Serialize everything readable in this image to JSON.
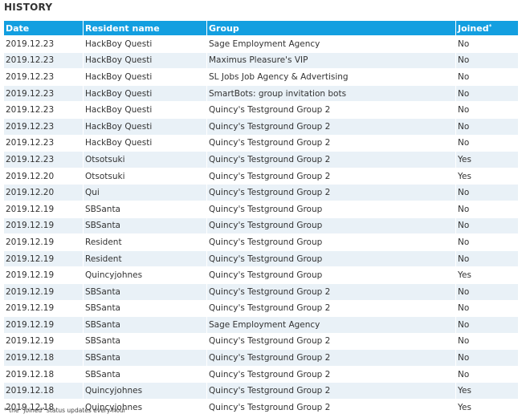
{
  "section": {
    "title": "HISTORY"
  },
  "table": {
    "headers": {
      "date": "Date",
      "resident": "Resident name",
      "group": "Group",
      "joined": "Joined",
      "joined_mark": "*"
    },
    "rows": [
      {
        "date": "2019.12.23",
        "resident": "HackBoy Questi",
        "group": "Sage Employment Agency",
        "joined": "No"
      },
      {
        "date": "2019.12.23",
        "resident": "HackBoy Questi",
        "group": "Maximus Pleasure's VIP",
        "joined": "No"
      },
      {
        "date": "2019.12.23",
        "resident": "HackBoy Questi",
        "group": "SL Jobs Job Agency & Advertising",
        "joined": "No"
      },
      {
        "date": "2019.12.23",
        "resident": "HackBoy Questi",
        "group": "SmartBots: group invitation bots",
        "joined": "No"
      },
      {
        "date": "2019.12.23",
        "resident": "HackBoy Questi",
        "group": "Quincy's Testground Group 2",
        "joined": "No"
      },
      {
        "date": "2019.12.23",
        "resident": "HackBoy Questi",
        "group": "Quincy's Testground Group 2",
        "joined": "No"
      },
      {
        "date": "2019.12.23",
        "resident": "HackBoy Questi",
        "group": "Quincy's Testground Group 2",
        "joined": "No"
      },
      {
        "date": "2019.12.23",
        "resident": "Otsotsuki",
        "group": "Quincy's Testground Group 2",
        "joined": "Yes"
      },
      {
        "date": "2019.12.20",
        "resident": "Otsotsuki",
        "group": "Quincy's Testground Group 2",
        "joined": "Yes"
      },
      {
        "date": "2019.12.20",
        "resident": "Qui",
        "group": "Quincy's Testground Group 2",
        "joined": "No"
      },
      {
        "date": "2019.12.19",
        "resident": "SBSanta",
        "group": "Quincy's Testground Group",
        "joined": "No"
      },
      {
        "date": "2019.12.19",
        "resident": "SBSanta",
        "group": "Quincy's Testground Group",
        "joined": "No"
      },
      {
        "date": "2019.12.19",
        "resident": "Resident",
        "group": "Quincy's Testground Group",
        "joined": "No"
      },
      {
        "date": "2019.12.19",
        "resident": "Resident",
        "group": "Quincy's Testground Group",
        "joined": "No"
      },
      {
        "date": "2019.12.19",
        "resident": "Quincyjohnes",
        "group": "Quincy's Testground Group",
        "joined": "Yes"
      },
      {
        "date": "2019.12.19",
        "resident": "SBSanta",
        "group": "Quincy's Testground Group 2",
        "joined": "No"
      },
      {
        "date": "2019.12.19",
        "resident": "SBSanta",
        "group": "Quincy's Testground Group 2",
        "joined": "No"
      },
      {
        "date": "2019.12.19",
        "resident": "SBSanta",
        "group": "Sage Employment Agency",
        "joined": "No"
      },
      {
        "date": "2019.12.19",
        "resident": "SBSanta",
        "group": "Quincy's Testground Group 2",
        "joined": "No"
      },
      {
        "date": "2019.12.18",
        "resident": "SBSanta",
        "group": "Quincy's Testground Group 2",
        "joined": "No"
      },
      {
        "date": "2019.12.18",
        "resident": "SBSanta",
        "group": "Quincy's Testground Group 2",
        "joined": "No"
      },
      {
        "date": "2019.12.18",
        "resident": "Quincyjohnes",
        "group": "Quincy's Testground Group 2",
        "joined": "Yes"
      },
      {
        "date": "2019.12.18",
        "resident": "Quincyjohnes",
        "group": "Quincy's Testground Group 2",
        "joined": "Yes"
      }
    ]
  },
  "footnote": "* the \"joined\" status updates every hour",
  "colors": {
    "header_bg": "#139fe0",
    "row_alt_bg": "#e9f1f7"
  }
}
